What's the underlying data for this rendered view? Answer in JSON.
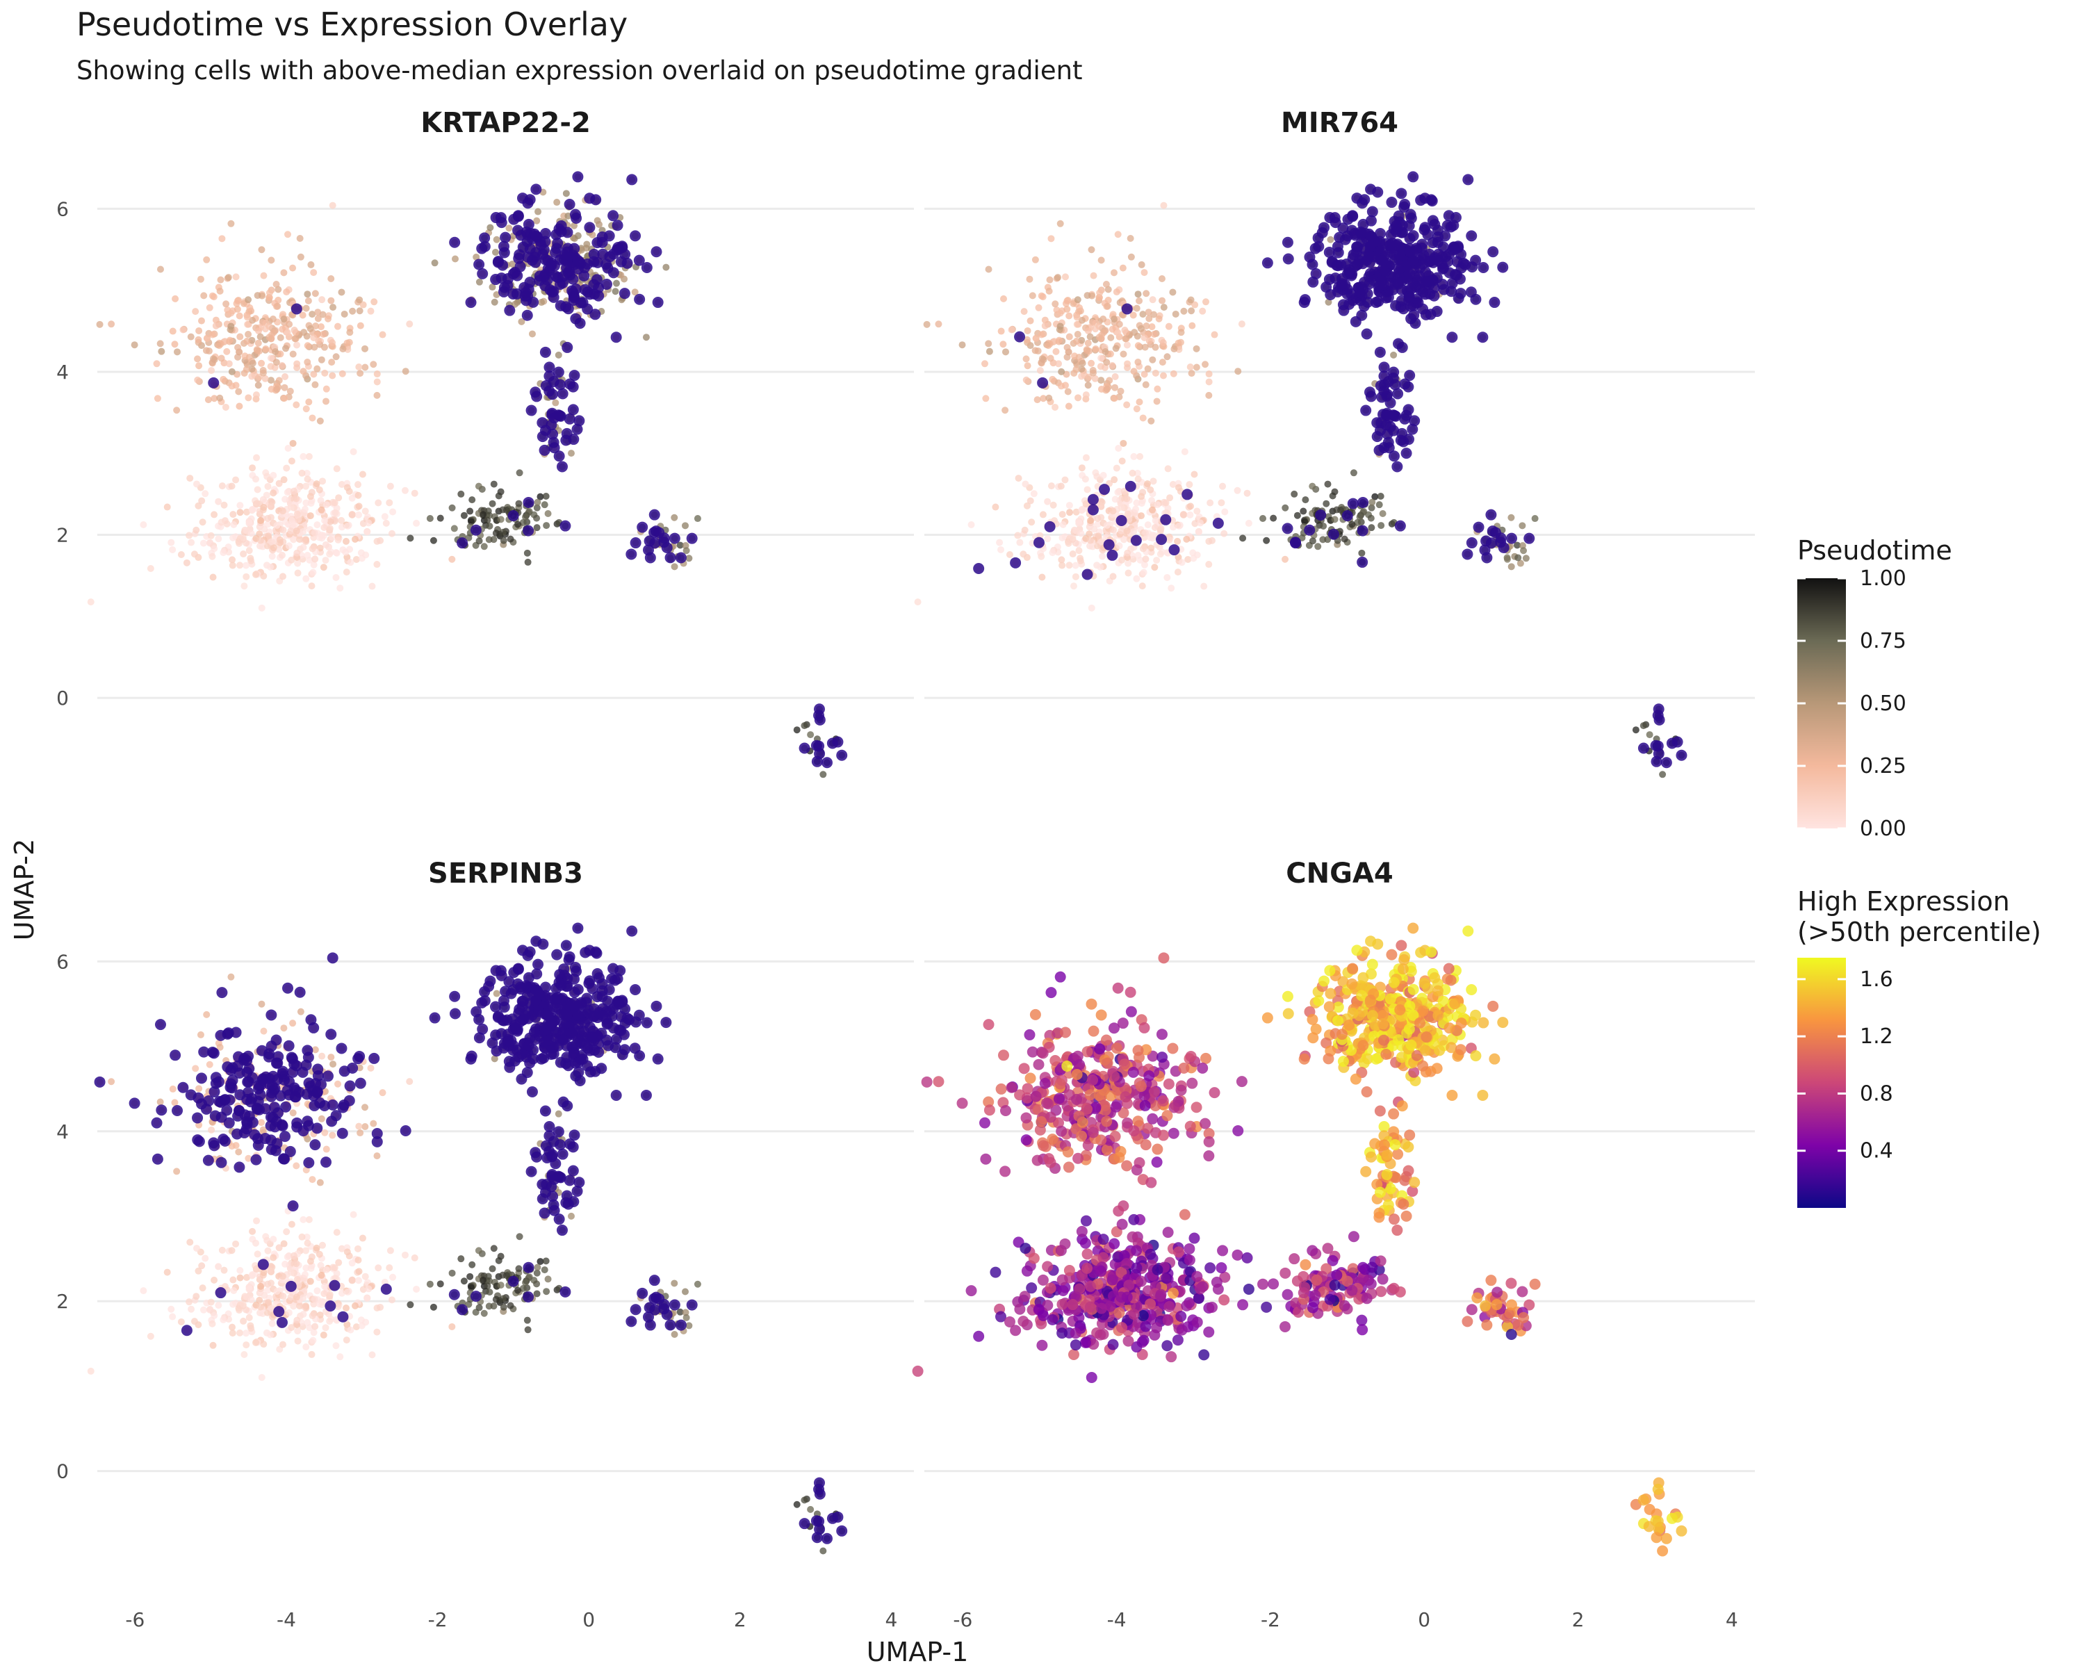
{
  "title": "Pseudotime vs Expression Overlay",
  "subtitle": "Showing cells with above-median expression overlaid on pseudotime gradient",
  "legends": {
    "pseudotime": {
      "title": "Pseudotime",
      "ticks": [
        0.0,
        0.25,
        0.5,
        0.75,
        1.0
      ],
      "tick_labels": [
        "0.00",
        "0.25",
        "0.50",
        "0.75",
        "1.00"
      ],
      "colors": [
        "#ffe4e1",
        "#f4b99d",
        "#b89878",
        "#6b6a55",
        "#111111"
      ]
    },
    "expression": {
      "title_line1": "High Expression",
      "title_line2": "(>50th percentile)",
      "ticks": [
        0.4,
        0.8,
        1.2,
        1.6
      ],
      "tick_labels": [
        "0.4",
        "0.8",
        "1.2",
        "1.6"
      ],
      "range": [
        0.0,
        1.75
      ],
      "colors": [
        "#0d0887",
        "#7e03a8",
        "#cc4778",
        "#f89540",
        "#f0f921"
      ]
    }
  },
  "colors": {
    "high_expression_flat": "#2c0a8c",
    "gridline": "#ebebeb"
  },
  "chart_data": {
    "type": "scatter",
    "xlabel": "UMAP-1",
    "ylabel": "UMAP-2",
    "xlim": [
      -6.5,
      4.3
    ],
    "ylim": [
      -1.5,
      6.6
    ],
    "x_ticks": [
      -6,
      -4,
      -2,
      0,
      2,
      4
    ],
    "x_tick_labels": [
      "-6",
      "-4",
      "-2",
      "0",
      "2",
      "4"
    ],
    "y_ticks": [
      0,
      2,
      4,
      6
    ],
    "y_tick_labels": [
      "0",
      "2",
      "4",
      "6"
    ],
    "grid": "horizontal major",
    "legend_position": "right",
    "facets": [
      {
        "gene": "KRTAP22-2",
        "high_expression_regions": [
          "top-right cluster",
          "branch tips",
          "small bottom-right cluster"
        ]
      },
      {
        "gene": "MIR764",
        "high_expression_regions": [
          "top-right cluster",
          "scattered lower-left cells",
          "small bottom-right cluster"
        ]
      },
      {
        "gene": "SERPINB3",
        "high_expression_regions": [
          "top-right cluster",
          "left-upper region",
          "small bottom-right cluster"
        ]
      },
      {
        "gene": "CNGA4",
        "high_expression_regions": [
          "all cells colored by expression; highest in top-right cluster"
        ]
      }
    ],
    "cell_groups": [
      {
        "group": "upper-left lobe",
        "center": [
          -4.2,
          4.4
        ],
        "spread": [
          1.1,
          0.8
        ],
        "pseudotime": 0.28,
        "cngA4_expression": 0.85
      },
      {
        "group": "lower-left lobe",
        "center": [
          -4.0,
          2.1
        ],
        "spread": [
          1.2,
          0.6
        ],
        "pseudotime": 0.05,
        "cngA4_expression": 0.55
      },
      {
        "group": "top-right cluster",
        "center": [
          -0.4,
          5.3
        ],
        "spread": [
          0.9,
          0.7
        ],
        "pseudotime": 0.55,
        "cngA4_expression": 1.45
      },
      {
        "group": "stem",
        "center": [
          -0.4,
          3.5
        ],
        "spread": [
          0.25,
          0.6
        ],
        "pseudotime": 0.6,
        "cngA4_expression": 1.4
      },
      {
        "group": "bridge",
        "center": [
          -1.2,
          2.2
        ],
        "spread": [
          0.7,
          0.35
        ],
        "pseudotime": 0.85,
        "cngA4_expression": 0.7
      },
      {
        "group": "right branch",
        "center": [
          1.0,
          1.9
        ],
        "spread": [
          0.4,
          0.25
        ],
        "pseudotime": 0.65,
        "cngA4_expression": 0.95
      },
      {
        "group": "small bottom-right cluster",
        "center": [
          3.1,
          -0.6
        ],
        "spread": [
          0.3,
          0.3
        ],
        "pseudotime": 0.9,
        "cngA4_expression": 1.3
      }
    ]
  }
}
